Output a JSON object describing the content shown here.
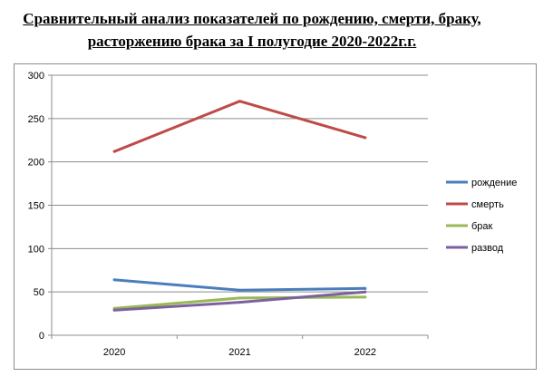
{
  "title": {
    "line1": "Сравнительный анализ показателей по рождению, смерти, браку,",
    "line2": "расторжению брака за I полугодие 2020-2022г.г."
  },
  "chart_data": {
    "type": "line",
    "categories": [
      "2020",
      "2021",
      "2022"
    ],
    "ylim": [
      0,
      300
    ],
    "yticks": [
      0,
      50,
      100,
      150,
      200,
      250,
      300
    ],
    "grid": true,
    "legend_position": "right",
    "series": [
      {
        "name": "рождение",
        "values": [
          64,
          52,
          54
        ],
        "color": "#4a7ebb"
      },
      {
        "name": "смерть",
        "values": [
          212,
          270,
          228
        ],
        "color": "#be4b48"
      },
      {
        "name": "брак",
        "values": [
          31,
          43,
          44
        ],
        "color": "#98b954"
      },
      {
        "name": "развод",
        "values": [
          29,
          38,
          50
        ],
        "color": "#7d60a0"
      }
    ]
  }
}
